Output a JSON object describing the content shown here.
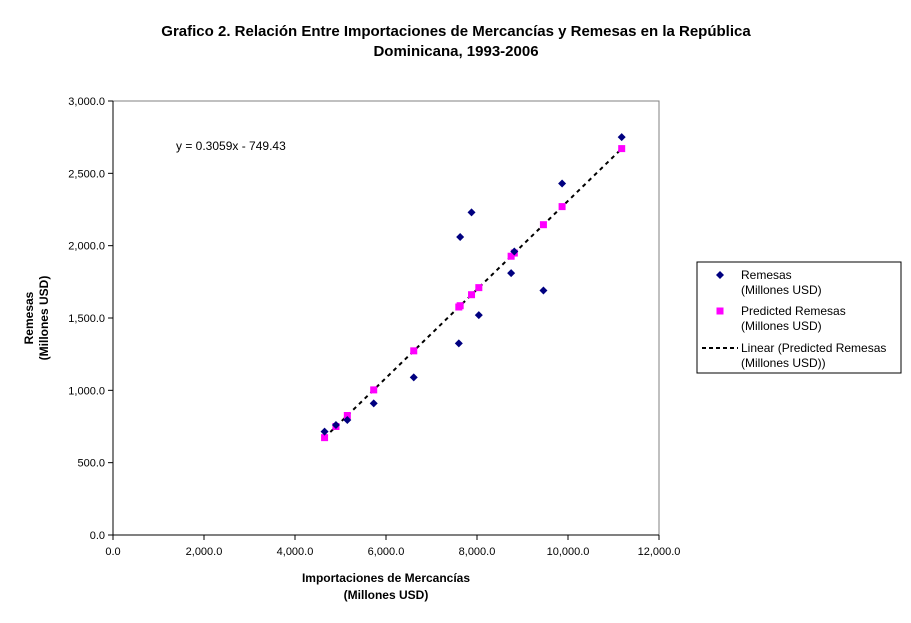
{
  "chart_data": {
    "type": "scatter",
    "title": [
      "Grafico 2. Relación Entre Importaciones de Mercancías y Remesas en la República",
      "Dominicana, 1993-2006"
    ],
    "xlabel": [
      "Importaciones de Mercancías",
      "(Millones USD)"
    ],
    "ylabel": [
      "Remesas",
      "(Millones USD)"
    ],
    "xlim": [
      0,
      12000
    ],
    "ylim": [
      0,
      3000
    ],
    "x_ticks": [
      0,
      2000,
      4000,
      6000,
      8000,
      10000,
      12000
    ],
    "y_ticks": [
      0,
      500,
      1000,
      1500,
      2000,
      2500,
      3000
    ],
    "x_tick_labels": [
      "0.0",
      "2,000.0",
      "4,000.0",
      "6,000.0",
      "8,000.0",
      "10,000.0",
      "12,000.0"
    ],
    "y_tick_labels": [
      "0.0",
      "500.0",
      "1,000.0",
      "1,500.0",
      "2,000.0",
      "2,500.0",
      "3,000.0"
    ],
    "grid": false,
    "legend_position": "right",
    "equation": "y = 0.3059x - 749.43",
    "trendline": {
      "slope": 0.3059,
      "intercept": -749.43,
      "x_range": [
        4650,
        11200
      ]
    },
    "series": [
      {
        "name": "Remesas (Millones USD)",
        "legend_lines": [
          "Remesas",
          "(Millones USD)"
        ],
        "marker": "diamond",
        "color": "#000080",
        "x": [
          4650,
          4900,
          5150,
          5730,
          6610,
          7600,
          7630,
          7880,
          8040,
          8750,
          8820,
          9460,
          9870,
          11180
        ],
        "y": [
          715,
          760,
          795,
          910,
          1090,
          1325,
          2060,
          2230,
          1520,
          1810,
          1960,
          1690,
          2430,
          2750
        ]
      },
      {
        "name": "Predicted Remesas (Millones USD)",
        "legend_lines": [
          "Predicted Remesas",
          "(Millones USD)"
        ],
        "marker": "square",
        "color": "#ff00ff",
        "x": [
          4650,
          4900,
          5150,
          5730,
          6610,
          7600,
          7630,
          7880,
          8040,
          8750,
          8820,
          9460,
          9870,
          11180
        ],
        "y": [
          673,
          750,
          826,
          1003,
          1273,
          1576,
          1585,
          1661,
          1710,
          1927,
          1949,
          2145,
          2270,
          2671
        ]
      }
    ],
    "trend_legend_lines": [
      "Linear (Predicted Remesas",
      "(Millones USD))"
    ]
  }
}
